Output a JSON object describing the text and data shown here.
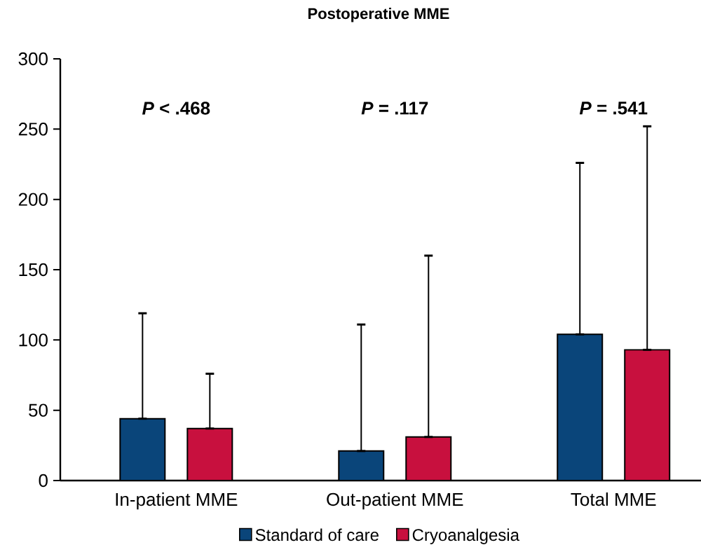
{
  "chart_data": {
    "type": "bar",
    "title": "Postoperative MME",
    "categories": [
      "In-patient MME",
      "Out-patient MME",
      "Total MME"
    ],
    "series": [
      {
        "name": "Standard of care",
        "color": "#0a457a",
        "values": [
          44,
          21,
          104
        ],
        "errors": [
          [
            44,
            119
          ],
          [
            21,
            111
          ],
          [
            104,
            226
          ]
        ]
      },
      {
        "name": "Cryoanalgesia",
        "color": "#c8103e",
        "values": [
          37,
          31,
          93
        ],
        "errors": [
          [
            37,
            76
          ],
          [
            31,
            160
          ],
          [
            93,
            252
          ]
        ]
      }
    ],
    "ylim": [
      0,
      300
    ],
    "yticks": [
      0,
      50,
      100,
      150,
      200,
      250,
      300
    ],
    "grid": false,
    "legend": "bottom",
    "annotations": [
      "*P* < .468",
      "*P* = .117",
      "*P* = .541"
    ]
  }
}
